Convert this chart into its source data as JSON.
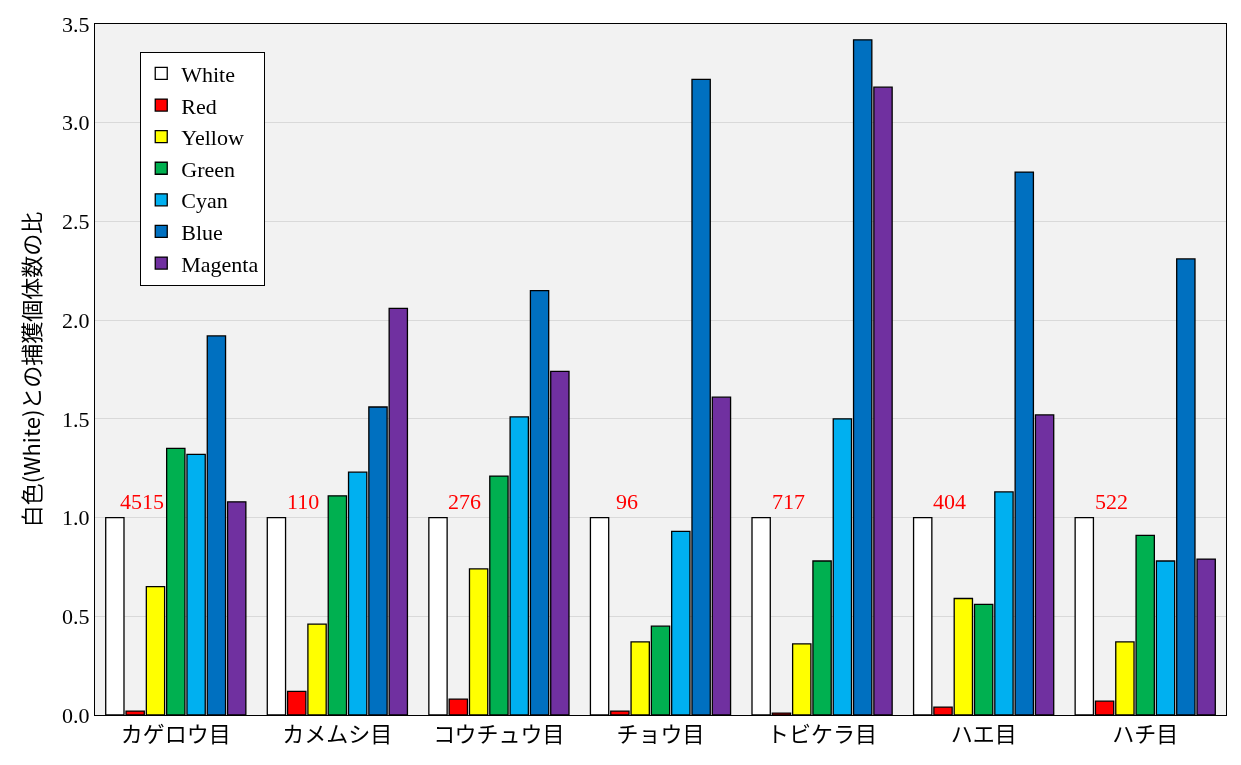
{
  "chart_data": {
    "type": "bar",
    "ylabel": "白色(White)との捕獲個体数の比",
    "categories": [
      "カゲロウ目",
      "カメムシ目",
      "コウチュウ目",
      "チョウ目",
      "トビケラ目",
      "ハエ目",
      "ハチ目"
    ],
    "series": [
      {
        "name": "White",
        "color": "#ffffff",
        "values": [
          1.0,
          1.0,
          1.0,
          1.0,
          1.0,
          1.0,
          1.0
        ]
      },
      {
        "name": "Red",
        "color": "#ff0000",
        "values": [
          0.02,
          0.12,
          0.08,
          0.02,
          0.01,
          0.04,
          0.07
        ]
      },
      {
        "name": "Yellow",
        "color": "#ffff00",
        "values": [
          0.65,
          0.46,
          0.74,
          0.37,
          0.36,
          0.59,
          0.37
        ]
      },
      {
        "name": "Green",
        "color": "#00b050",
        "values": [
          1.35,
          1.11,
          1.21,
          0.45,
          0.78,
          0.56,
          0.91
        ]
      },
      {
        "name": "Cyan",
        "color": "#00b0f0",
        "values": [
          1.32,
          1.23,
          1.51,
          0.93,
          1.5,
          1.13,
          0.78
        ]
      },
      {
        "name": "Blue",
        "color": "#0070c0",
        "values": [
          1.92,
          1.56,
          2.15,
          3.22,
          3.42,
          2.75,
          2.31
        ]
      },
      {
        "name": "Magenta",
        "color": "#7030a0",
        "values": [
          1.08,
          2.06,
          1.74,
          1.61,
          3.18,
          1.52,
          0.79
        ]
      }
    ],
    "annotations": [
      "4515",
      "110",
      "276",
      "96",
      "717",
      "404",
      "522"
    ],
    "ylim": [
      0,
      3.5
    ],
    "yticks": [
      {
        "value": 0,
        "label": "0.0"
      },
      {
        "value": 0.5,
        "label": "0.5"
      },
      {
        "value": 1,
        "label": "1.0"
      },
      {
        "value": 1.5,
        "label": "1.5"
      },
      {
        "value": 2,
        "label": "2.0"
      },
      {
        "value": 2.5,
        "label": "2.5"
      },
      {
        "value": 3,
        "label": "3.0"
      },
      {
        "value": 3.5,
        "label": "3.5"
      }
    ],
    "grid": "y",
    "legend": "top left"
  }
}
